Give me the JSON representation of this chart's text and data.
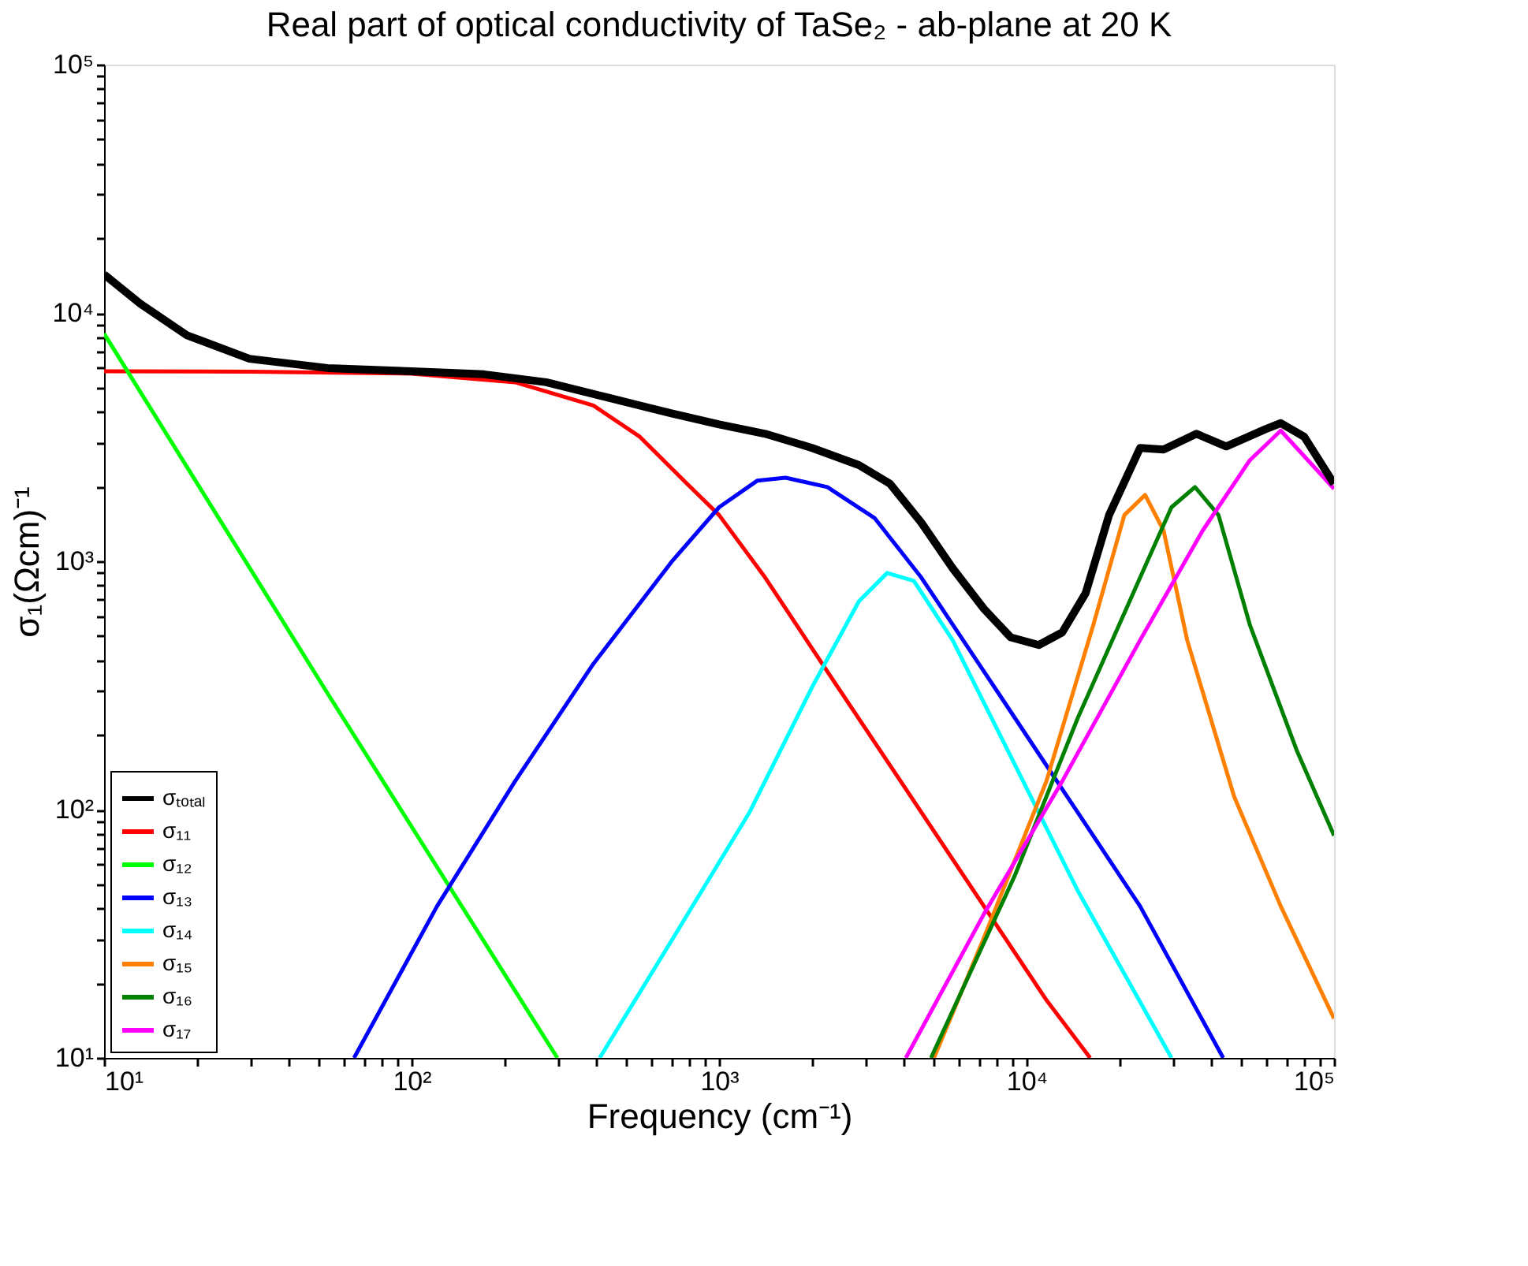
{
  "chart_data": {
    "type": "line",
    "title": "Real part of optical conductivity of TaSe₂ - ab-plane at 20 K",
    "xlabel": "Frequency (cm⁻¹)",
    "ylabel": "σ₁(Ωcm)⁻¹",
    "log": "xy",
    "grid": false,
    "legend": "bottom left",
    "xlim": [
      10,
      100000
    ],
    "ylim": [
      10,
      100000
    ],
    "xticks": [
      {
        "value": 10,
        "label": "10¹"
      },
      {
        "value": 20,
        "label": null
      },
      {
        "value": 30,
        "label": null
      },
      {
        "value": 40,
        "label": null
      },
      {
        "value": 50,
        "label": null
      },
      {
        "value": 60,
        "label": null
      },
      {
        "value": 70,
        "label": null
      },
      {
        "value": 80,
        "label": null
      },
      {
        "value": 90,
        "label": null
      },
      {
        "value": 100,
        "label": "10²"
      },
      {
        "value": 200,
        "label": null
      },
      {
        "value": 300,
        "label": null
      },
      {
        "value": 400,
        "label": null
      },
      {
        "value": 500,
        "label": null
      },
      {
        "value": 600,
        "label": null
      },
      {
        "value": 700,
        "label": null
      },
      {
        "value": 800,
        "label": null
      },
      {
        "value": 900,
        "label": null
      },
      {
        "value": 1000,
        "label": "10³"
      },
      {
        "value": 2000,
        "label": null
      },
      {
        "value": 3000,
        "label": null
      },
      {
        "value": 4000,
        "label": null
      },
      {
        "value": 5000,
        "label": null
      },
      {
        "value": 6000,
        "label": null
      },
      {
        "value": 7000,
        "label": null
      },
      {
        "value": 8000,
        "label": null
      },
      {
        "value": 9000,
        "label": null
      },
      {
        "value": 10000,
        "label": "10⁴"
      },
      {
        "value": 20000,
        "label": null
      },
      {
        "value": 30000,
        "label": null
      },
      {
        "value": 40000,
        "label": null
      },
      {
        "value": 50000,
        "label": null
      },
      {
        "value": 60000,
        "label": null
      },
      {
        "value": 70000,
        "label": null
      },
      {
        "value": 80000,
        "label": null
      },
      {
        "value": 90000,
        "label": null
      },
      {
        "value": 100000,
        "label": "10⁵"
      }
    ],
    "yticks": [
      {
        "value": 10,
        "label": "10¹"
      },
      {
        "value": 20,
        "label": null
      },
      {
        "value": 30,
        "label": null
      },
      {
        "value": 40,
        "label": null
      },
      {
        "value": 50,
        "label": null
      },
      {
        "value": 60,
        "label": null
      },
      {
        "value": 70,
        "label": null
      },
      {
        "value": 80,
        "label": null
      },
      {
        "value": 90,
        "label": null
      },
      {
        "value": 100,
        "label": "10²"
      },
      {
        "value": 200,
        "label": null
      },
      {
        "value": 300,
        "label": null
      },
      {
        "value": 400,
        "label": null
      },
      {
        "value": 500,
        "label": null
      },
      {
        "value": 600,
        "label": null
      },
      {
        "value": 700,
        "label": null
      },
      {
        "value": 800,
        "label": null
      },
      {
        "value": 900,
        "label": null
      },
      {
        "value": 1000,
        "label": "10³"
      },
      {
        "value": 2000,
        "label": null
      },
      {
        "value": 3000,
        "label": null
      },
      {
        "value": 4000,
        "label": null
      },
      {
        "value": 5000,
        "label": null
      },
      {
        "value": 6000,
        "label": null
      },
      {
        "value": 7000,
        "label": null
      },
      {
        "value": 8000,
        "label": null
      },
      {
        "value": 9000,
        "label": null
      },
      {
        "value": 10000,
        "label": "10⁴"
      },
      {
        "value": 20000,
        "label": null
      },
      {
        "value": 30000,
        "label": null
      },
      {
        "value": 40000,
        "label": null
      },
      {
        "value": 50000,
        "label": null
      },
      {
        "value": 60000,
        "label": null
      },
      {
        "value": 70000,
        "label": null
      },
      {
        "value": 80000,
        "label": null
      },
      {
        "value": 90000,
        "label": null
      },
      {
        "value": 100000,
        "label": "10⁵"
      }
    ],
    "series": [
      {
        "name": "σₜₒₜₐₗ",
        "color": "#000000",
        "x": [
          10,
          13.1,
          18.6,
          29.7,
          53.3,
          100,
          172,
          274,
          438,
          700,
          1000,
          1413,
          2006,
          2850,
          3600,
          4550,
          5750,
          7270,
          8880,
          10960,
          13060,
          15560,
          18550,
          23400,
          27900,
          35700,
          44600,
          59700,
          67100,
          80000,
          100000
        ],
        "values": [
          14300,
          10900,
          8130,
          6540,
          6000,
          5820,
          5660,
          5260,
          4550,
          3940,
          3560,
          3260,
          2860,
          2440,
          2050,
          1430,
          937,
          643,
          494,
          460,
          517,
          743,
          1535,
          2860,
          2820,
          3260,
          2900,
          3400,
          3600,
          3170,
          2050
        ]
      },
      {
        "name": "σ₁₁",
        "color": "#ff0000",
        "x": [
          10,
          30,
          100,
          217,
          390,
          553,
          787,
          1000,
          1413,
          2250,
          4050,
          7270,
          11600,
          16100
        ],
        "values": [
          5820,
          5800,
          5700,
          5260,
          4240,
          3170,
          2050,
          1535,
          859,
          360,
          121,
          40.8,
          17.1,
          10
        ]
      },
      {
        "name": "σ₁₂",
        "color": "#00ff00",
        "x": [
          10,
          53.3,
          298
        ],
        "values": [
          8260,
          294,
          10
        ]
      },
      {
        "name": "σ₁₃",
        "color": "#0000ff",
        "x": [
          65,
          121,
          217,
          390,
          700,
          1000,
          1330,
          1645,
          2250,
          3210,
          4550,
          7270,
          14660,
          23400,
          43600
        ],
        "values": [
          10,
          40.8,
          130,
          386,
          993,
          1650,
          2110,
          2170,
          1990,
          1490,
          859,
          360,
          97.5,
          40.8,
          10
        ]
      },
      {
        "name": "σ₁₄",
        "color": "#00ffff",
        "x": [
          409,
          700,
          1256,
          2006,
          2850,
          3520,
          4300,
          5750,
          9180,
          14660,
          29600
        ],
        "values": [
          10,
          29.6,
          97.5,
          311,
          690,
          897,
          834,
          481,
          151,
          47.2,
          10
        ]
      },
      {
        "name": "σ₁₅",
        "color": "#ff8000",
        "x": [
          5000,
          7270,
          11600,
          16500,
          20800,
          24300,
          27900,
          33300,
          47300,
          67100,
          100000
        ],
        "values": [
          10,
          30.5,
          130,
          556,
          1535,
          1850,
          1330,
          481,
          113,
          40.8,
          14.4
        ]
      },
      {
        "name": "σ₁₆",
        "color": "#008000",
        "x": [
          4890,
          9180,
          14660,
          23400,
          29600,
          35300,
          42100,
          53200,
          75500,
          100000
        ],
        "values": [
          10,
          54.6,
          233,
          859,
          1650,
          1990,
          1535,
          556,
          174,
          78.5
        ]
      },
      {
        "name": "σ₁₇",
        "color": "#ff00ff",
        "x": [
          4050,
          7270,
          13060,
          23400,
          37400,
          53200,
          67100,
          100000
        ],
        "values": [
          10,
          38.0,
          130,
          481,
          1330,
          2550,
          3360,
          1960
        ]
      }
    ]
  }
}
